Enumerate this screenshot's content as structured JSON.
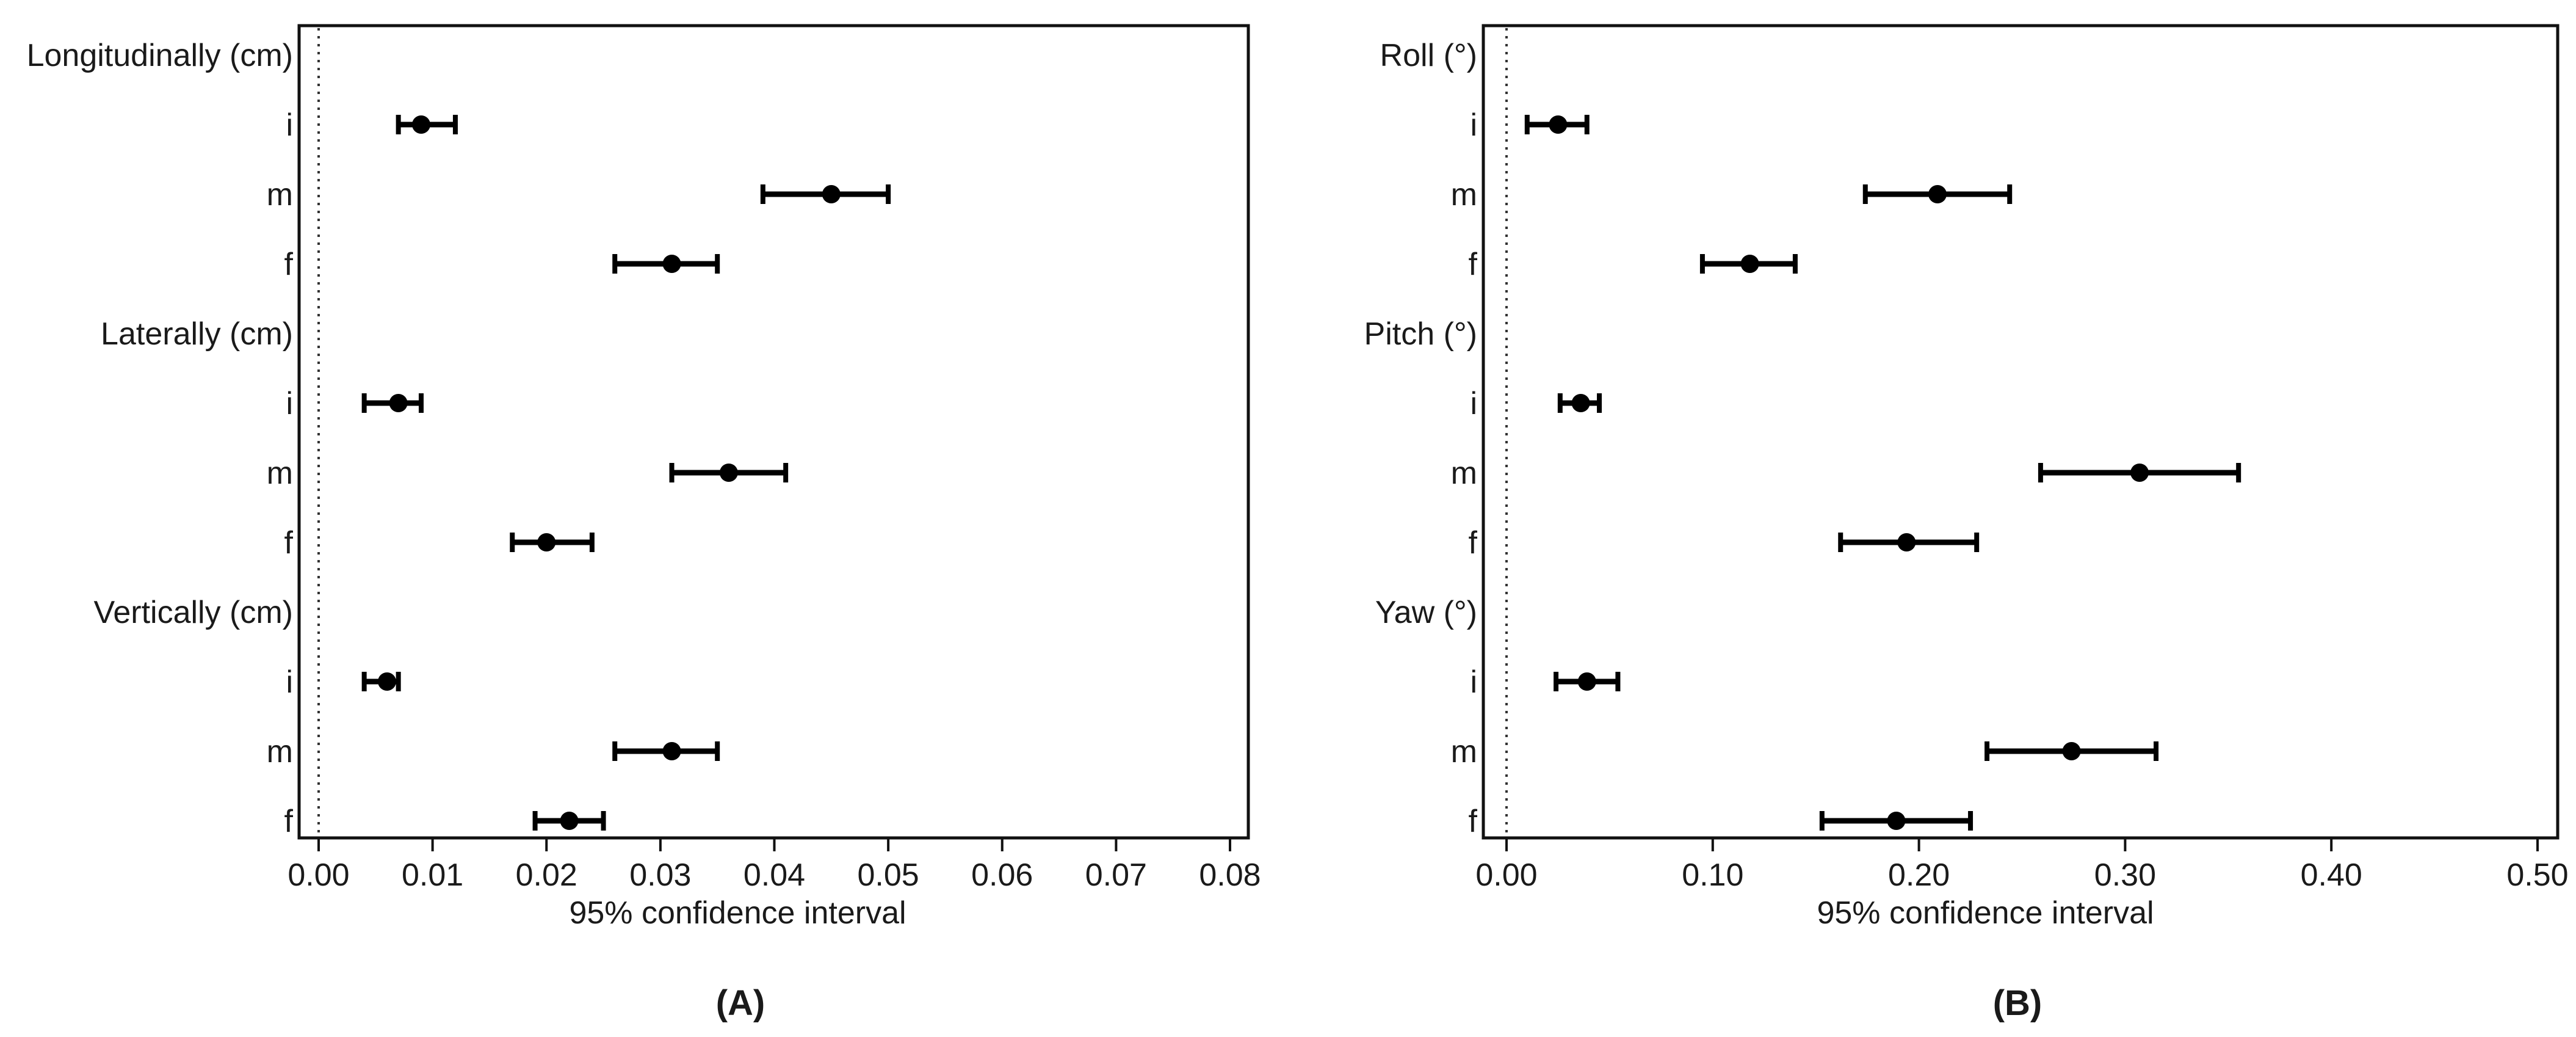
{
  "figure": {
    "panel_a_label": "(A)",
    "panel_b_label": "(B)"
  },
  "chart_data": [
    {
      "type": "scatter",
      "style": "forest-plot with horizontal 95% CI error bars",
      "panel": "(A)",
      "xlabel": "95% confidence interval",
      "ylabel": "",
      "xlim": [
        0,
        0.08
      ],
      "xticks": [
        "0.00",
        "0.01",
        "0.02",
        "0.03",
        "0.04",
        "0.05",
        "0.06",
        "0.07",
        "0.08"
      ],
      "reference_line": {
        "x": 0,
        "style": "dotted"
      },
      "grid": false,
      "groups": [
        {
          "label": "Longitudinally (cm)",
          "rows": [
            {
              "label": "i",
              "estimate": 0.009,
              "lower": 0.007,
              "upper": 0.012
            },
            {
              "label": "m",
              "estimate": 0.045,
              "lower": 0.039,
              "upper": 0.05
            },
            {
              "label": "f",
              "estimate": 0.031,
              "lower": 0.026,
              "upper": 0.035
            }
          ]
        },
        {
          "label": "Laterally (cm)",
          "rows": [
            {
              "label": "i",
              "estimate": 0.007,
              "lower": 0.004,
              "upper": 0.009
            },
            {
              "label": "m",
              "estimate": 0.036,
              "lower": 0.031,
              "upper": 0.041
            },
            {
              "label": "f",
              "estimate": 0.02,
              "lower": 0.017,
              "upper": 0.024
            }
          ]
        },
        {
          "label": "Vertically (cm)",
          "rows": [
            {
              "label": "i",
              "estimate": 0.006,
              "lower": 0.004,
              "upper": 0.007
            },
            {
              "label": "m",
              "estimate": 0.031,
              "lower": 0.026,
              "upper": 0.035
            },
            {
              "label": "f",
              "estimate": 0.022,
              "lower": 0.019,
              "upper": 0.025
            }
          ]
        }
      ]
    },
    {
      "type": "scatter",
      "style": "forest-plot with horizontal 95% CI error bars",
      "panel": "(B)",
      "xlabel": "95% confidence interval",
      "ylabel": "",
      "xlim": [
        0,
        0.5
      ],
      "xticks": [
        "0.00",
        "0.10",
        "0.20",
        "0.30",
        "0.40",
        "0.50"
      ],
      "reference_line": {
        "x": 0,
        "style": "dotted"
      },
      "grid": false,
      "groups": [
        {
          "label": "Roll (°)",
          "rows": [
            {
              "label": "i",
              "estimate": 0.025,
              "lower": 0.01,
              "upper": 0.039
            },
            {
              "label": "m",
              "estimate": 0.209,
              "lower": 0.174,
              "upper": 0.244
            },
            {
              "label": "f",
              "estimate": 0.118,
              "lower": 0.095,
              "upper": 0.14
            }
          ]
        },
        {
          "label": "Pitch (°)",
          "rows": [
            {
              "label": "i",
              "estimate": 0.036,
              "lower": 0.026,
              "upper": 0.045
            },
            {
              "label": "m",
              "estimate": 0.307,
              "lower": 0.259,
              "upper": 0.355
            },
            {
              "label": "f",
              "estimate": 0.194,
              "lower": 0.162,
              "upper": 0.228
            }
          ]
        },
        {
          "label": "Yaw (°)",
          "rows": [
            {
              "label": "i",
              "estimate": 0.039,
              "lower": 0.024,
              "upper": 0.054
            },
            {
              "label": "m",
              "estimate": 0.274,
              "lower": 0.233,
              "upper": 0.315
            },
            {
              "label": "f",
              "estimate": 0.189,
              "lower": 0.153,
              "upper": 0.225
            }
          ]
        }
      ]
    }
  ]
}
